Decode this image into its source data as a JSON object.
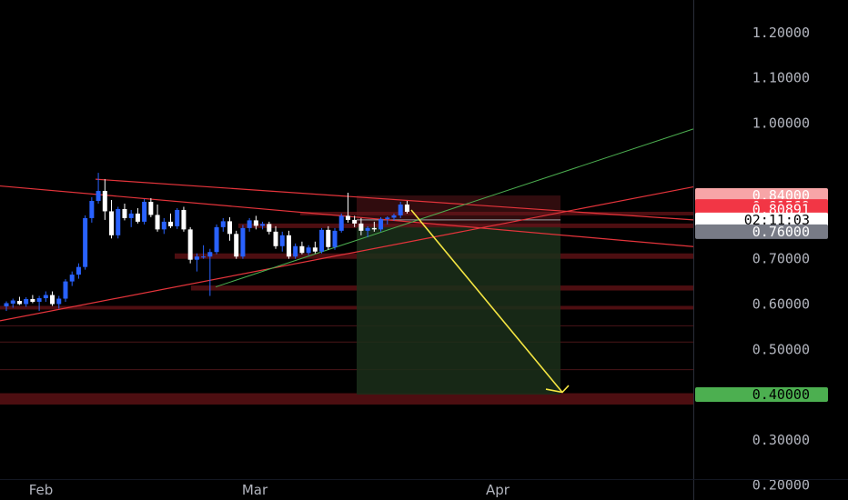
{
  "chart_data": {
    "type": "candlestick",
    "x_labels": [
      "Feb",
      "Mar",
      "Apr"
    ],
    "y_ticks": [
      1.2,
      1.1,
      1.0,
      0.7,
      0.6,
      0.5,
      0.3,
      0.2
    ],
    "y_tick_labels": [
      "1.20000",
      "1.10000",
      "1.00000",
      "0.70000",
      "0.60000",
      "0.50000",
      "0.30000",
      "0.20000"
    ],
    "ylim": [
      0.167,
      1.272
    ],
    "price_badges": [
      {
        "label": "0.84000",
        "value": 0.84,
        "bg": "#f7a5a7",
        "fg": "#ffffff"
      },
      {
        "label": "0.81569",
        "value": 0.81569,
        "bg": "#f23645",
        "fg": "#ffffff"
      },
      {
        "label": "0.80891",
        "value": 0.80891,
        "bg": "#f23645",
        "fg": "#ffffff"
      },
      {
        "label": "02:11:03",
        "value": 0.786,
        "bg": "#ffffff",
        "fg": "#000000"
      },
      {
        "label": "0.76000",
        "value": 0.76,
        "bg": "#787b86",
        "fg": "#ffffff"
      },
      {
        "label": "0.40000",
        "value": 0.4,
        "bg": "#4caf50",
        "fg": "#000000"
      }
    ],
    "candles": [
      [
        0.595,
        0.606,
        0.585,
        0.602
      ],
      [
        0.601,
        0.612,
        0.592,
        0.608
      ],
      [
        0.607,
        0.616,
        0.598,
        0.6
      ],
      [
        0.6,
        0.615,
        0.594,
        0.611
      ],
      [
        0.611,
        0.62,
        0.602,
        0.605
      ],
      [
        0.605,
        0.618,
        0.585,
        0.613
      ],
      [
        0.613,
        0.628,
        0.605,
        0.62
      ],
      [
        0.62,
        0.628,
        0.596,
        0.6
      ],
      [
        0.6,
        0.618,
        0.59,
        0.612
      ],
      [
        0.612,
        0.655,
        0.605,
        0.65
      ],
      [
        0.65,
        0.672,
        0.64,
        0.665
      ],
      [
        0.665,
        0.69,
        0.656,
        0.682
      ],
      [
        0.682,
        0.796,
        0.676,
        0.79
      ],
      [
        0.79,
        0.836,
        0.78,
        0.828
      ],
      [
        0.828,
        0.89,
        0.822,
        0.85
      ],
      [
        0.85,
        0.876,
        0.786,
        0.805
      ],
      [
        0.805,
        0.83,
        0.745,
        0.752
      ],
      [
        0.752,
        0.815,
        0.745,
        0.81
      ],
      [
        0.81,
        0.822,
        0.785,
        0.79
      ],
      [
        0.79,
        0.808,
        0.77,
        0.8
      ],
      [
        0.8,
        0.812,
        0.778,
        0.782
      ],
      [
        0.782,
        0.832,
        0.776,
        0.826
      ],
      [
        0.826,
        0.834,
        0.792,
        0.797
      ],
      [
        0.797,
        0.82,
        0.76,
        0.765
      ],
      [
        0.765,
        0.79,
        0.755,
        0.782
      ],
      [
        0.782,
        0.8,
        0.768,
        0.772
      ],
      [
        0.772,
        0.812,
        0.766,
        0.808
      ],
      [
        0.808,
        0.815,
        0.76,
        0.765
      ],
      [
        0.765,
        0.77,
        0.69,
        0.698
      ],
      [
        0.698,
        0.712,
        0.672,
        0.705
      ],
      [
        0.705,
        0.73,
        0.7,
        0.705
      ],
      [
        0.705,
        0.722,
        0.618,
        0.715
      ],
      [
        0.715,
        0.776,
        0.71,
        0.77
      ],
      [
        0.77,
        0.79,
        0.76,
        0.783
      ],
      [
        0.783,
        0.792,
        0.74,
        0.755
      ],
      [
        0.755,
        0.762,
        0.7,
        0.705
      ],
      [
        0.705,
        0.775,
        0.7,
        0.768
      ],
      [
        0.768,
        0.79,
        0.76,
        0.785
      ],
      [
        0.785,
        0.795,
        0.765,
        0.773
      ],
      [
        0.773,
        0.782,
        0.765,
        0.777
      ],
      [
        0.777,
        0.782,
        0.754,
        0.76
      ],
      [
        0.76,
        0.772,
        0.722,
        0.728
      ],
      [
        0.728,
        0.76,
        0.716,
        0.752
      ],
      [
        0.752,
        0.762,
        0.7,
        0.705
      ],
      [
        0.705,
        0.734,
        0.7,
        0.728
      ],
      [
        0.728,
        0.738,
        0.71,
        0.713
      ],
      [
        0.713,
        0.73,
        0.708,
        0.725
      ],
      [
        0.725,
        0.738,
        0.712,
        0.716
      ],
      [
        0.716,
        0.768,
        0.712,
        0.764
      ],
      [
        0.764,
        0.772,
        0.72,
        0.726
      ],
      [
        0.726,
        0.768,
        0.72,
        0.762
      ],
      [
        0.762,
        0.8,
        0.758,
        0.795
      ],
      [
        0.795,
        0.846,
        0.78,
        0.786
      ],
      [
        0.786,
        0.795,
        0.77,
        0.778
      ],
      [
        0.778,
        0.79,
        0.752,
        0.762
      ],
      [
        0.762,
        0.772,
        0.748,
        0.768
      ],
      [
        0.768,
        0.782,
        0.76,
        0.765
      ],
      [
        0.765,
        0.792,
        0.76,
        0.788
      ],
      [
        0.788,
        0.794,
        0.776,
        0.791
      ],
      [
        0.791,
        0.8,
        0.784,
        0.796
      ],
      [
        0.796,
        0.826,
        0.79,
        0.82
      ],
      [
        0.82,
        0.828,
        0.8,
        0.804
      ]
    ],
    "colors": {
      "up": "#2962ff",
      "down": "#ffffff"
    }
  }
}
